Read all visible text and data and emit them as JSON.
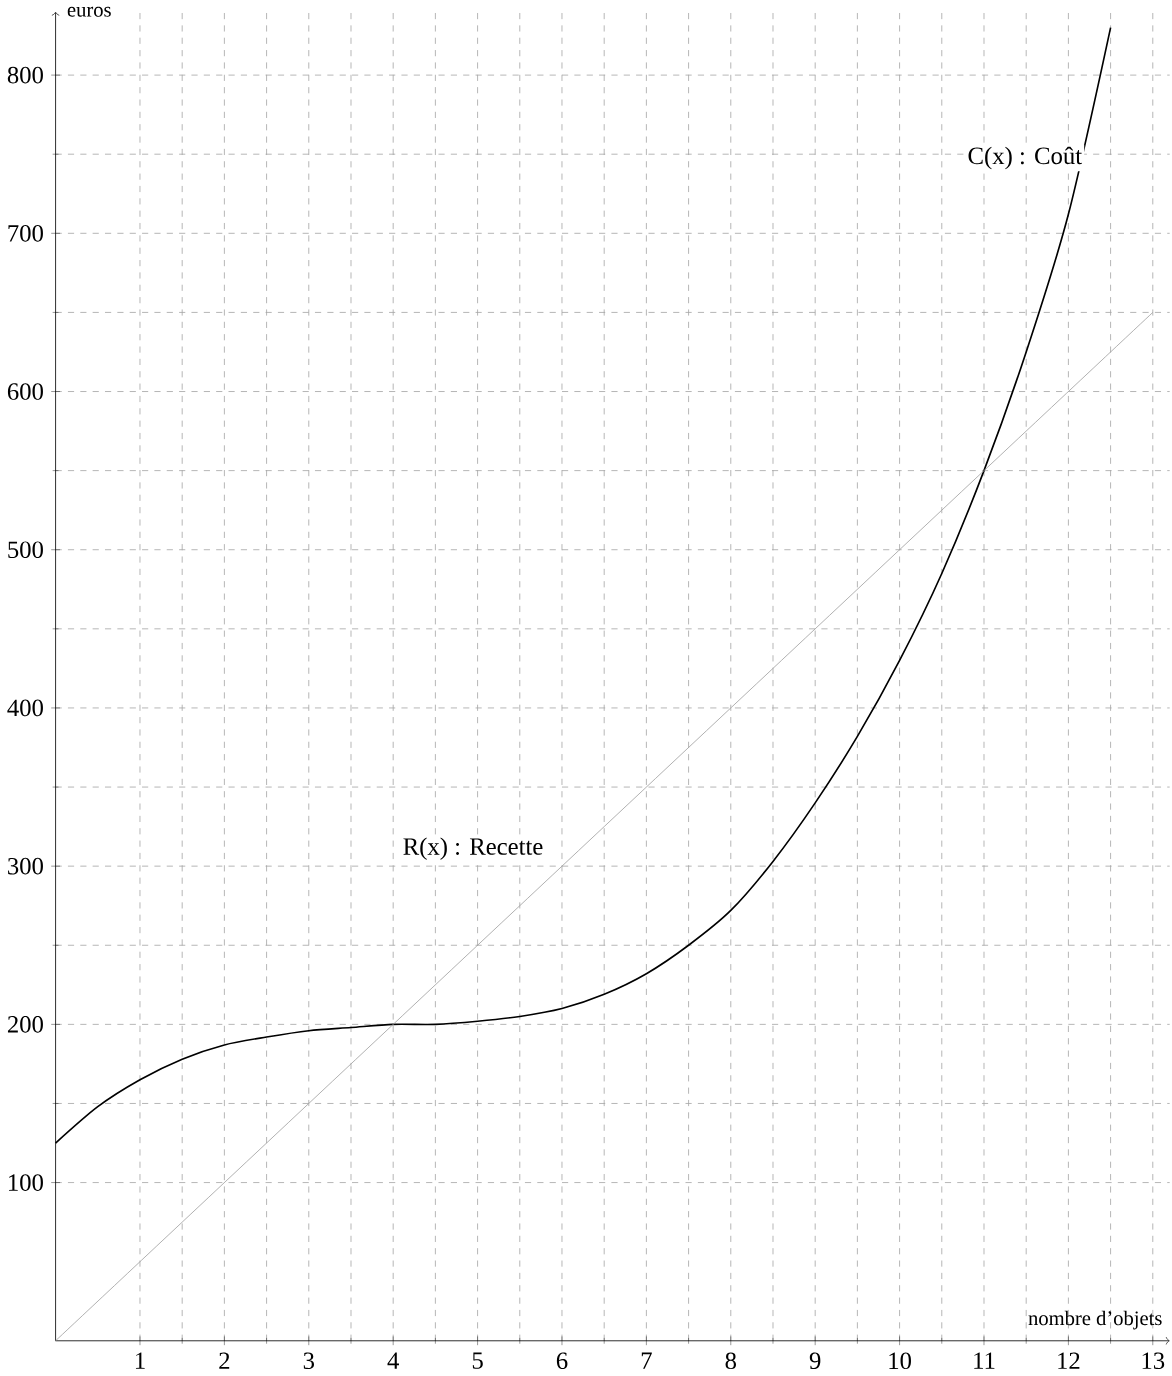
{
  "chart_data": {
    "type": "line",
    "xlabel": "nombre d’objets",
    "ylabel": "euros",
    "xlim": [
      0,
      13.2
    ],
    "ylim": [
      0,
      840
    ],
    "xticks": [
      1,
      2,
      3,
      4,
      5,
      6,
      7,
      8,
      9,
      10,
      11,
      12,
      13
    ],
    "yticks": [
      100,
      200,
      300,
      400,
      500,
      600,
      700,
      800
    ],
    "grid": true,
    "marker": "none",
    "line_style": "solid",
    "series": [
      {
        "name": "C(x) : Coût",
        "color": "#000000",
        "x": [
          0,
          0.5,
          1,
          1.5,
          2,
          2.5,
          3,
          3.5,
          4,
          4.5,
          5,
          5.5,
          6,
          6.5,
          7,
          7.5,
          8,
          8.5,
          9,
          9.5,
          10,
          10.5,
          11,
          11.5,
          12,
          12.5
        ],
        "values": [
          125,
          148,
          165,
          178,
          187,
          192,
          196,
          198,
          200,
          200,
          202,
          205,
          210,
          219,
          232,
          250,
          272,
          303,
          340,
          382,
          430,
          485,
          550,
          625,
          712,
          830
        ]
      },
      {
        "name": "R(x) : Recette",
        "color": "#a0a0a0",
        "x": [
          0,
          13
        ],
        "values": [
          0,
          650
        ]
      }
    ]
  }
}
